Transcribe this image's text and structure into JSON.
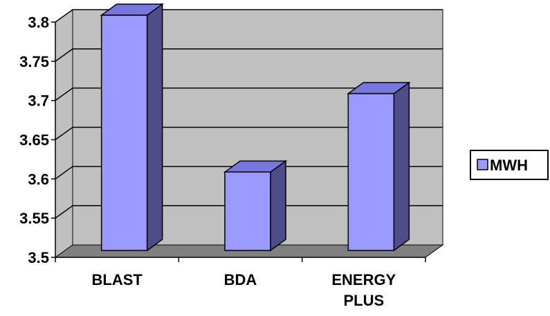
{
  "chart_data": {
    "type": "bar",
    "style": "3d-column",
    "categories": [
      "BLAST",
      "BDA",
      "ENERGY PLUS"
    ],
    "category_lines": [
      [
        "BLAST"
      ],
      [
        "BDA"
      ],
      [
        "ENERGY",
        "PLUS"
      ]
    ],
    "series": [
      {
        "name": "MWH",
        "values": [
          3.8,
          3.6,
          3.7
        ]
      }
    ],
    "ylim": [
      3.5,
      3.8
    ],
    "yticks": [
      3.5,
      3.55,
      3.6,
      3.65,
      3.7,
      3.75,
      3.8
    ],
    "ytick_labels": [
      "3.5",
      "3.55",
      "3.6",
      "3.65",
      "3.7",
      "3.75",
      "3.8"
    ],
    "grid": true,
    "legend_position": "right",
    "colors": {
      "bar_front": "#9999ff",
      "bar_side": "#4d4d88",
      "bar_top": "#7777dd",
      "wall": "#c0c0c0",
      "floor": "#808080",
      "gridline": "#000000"
    }
  }
}
